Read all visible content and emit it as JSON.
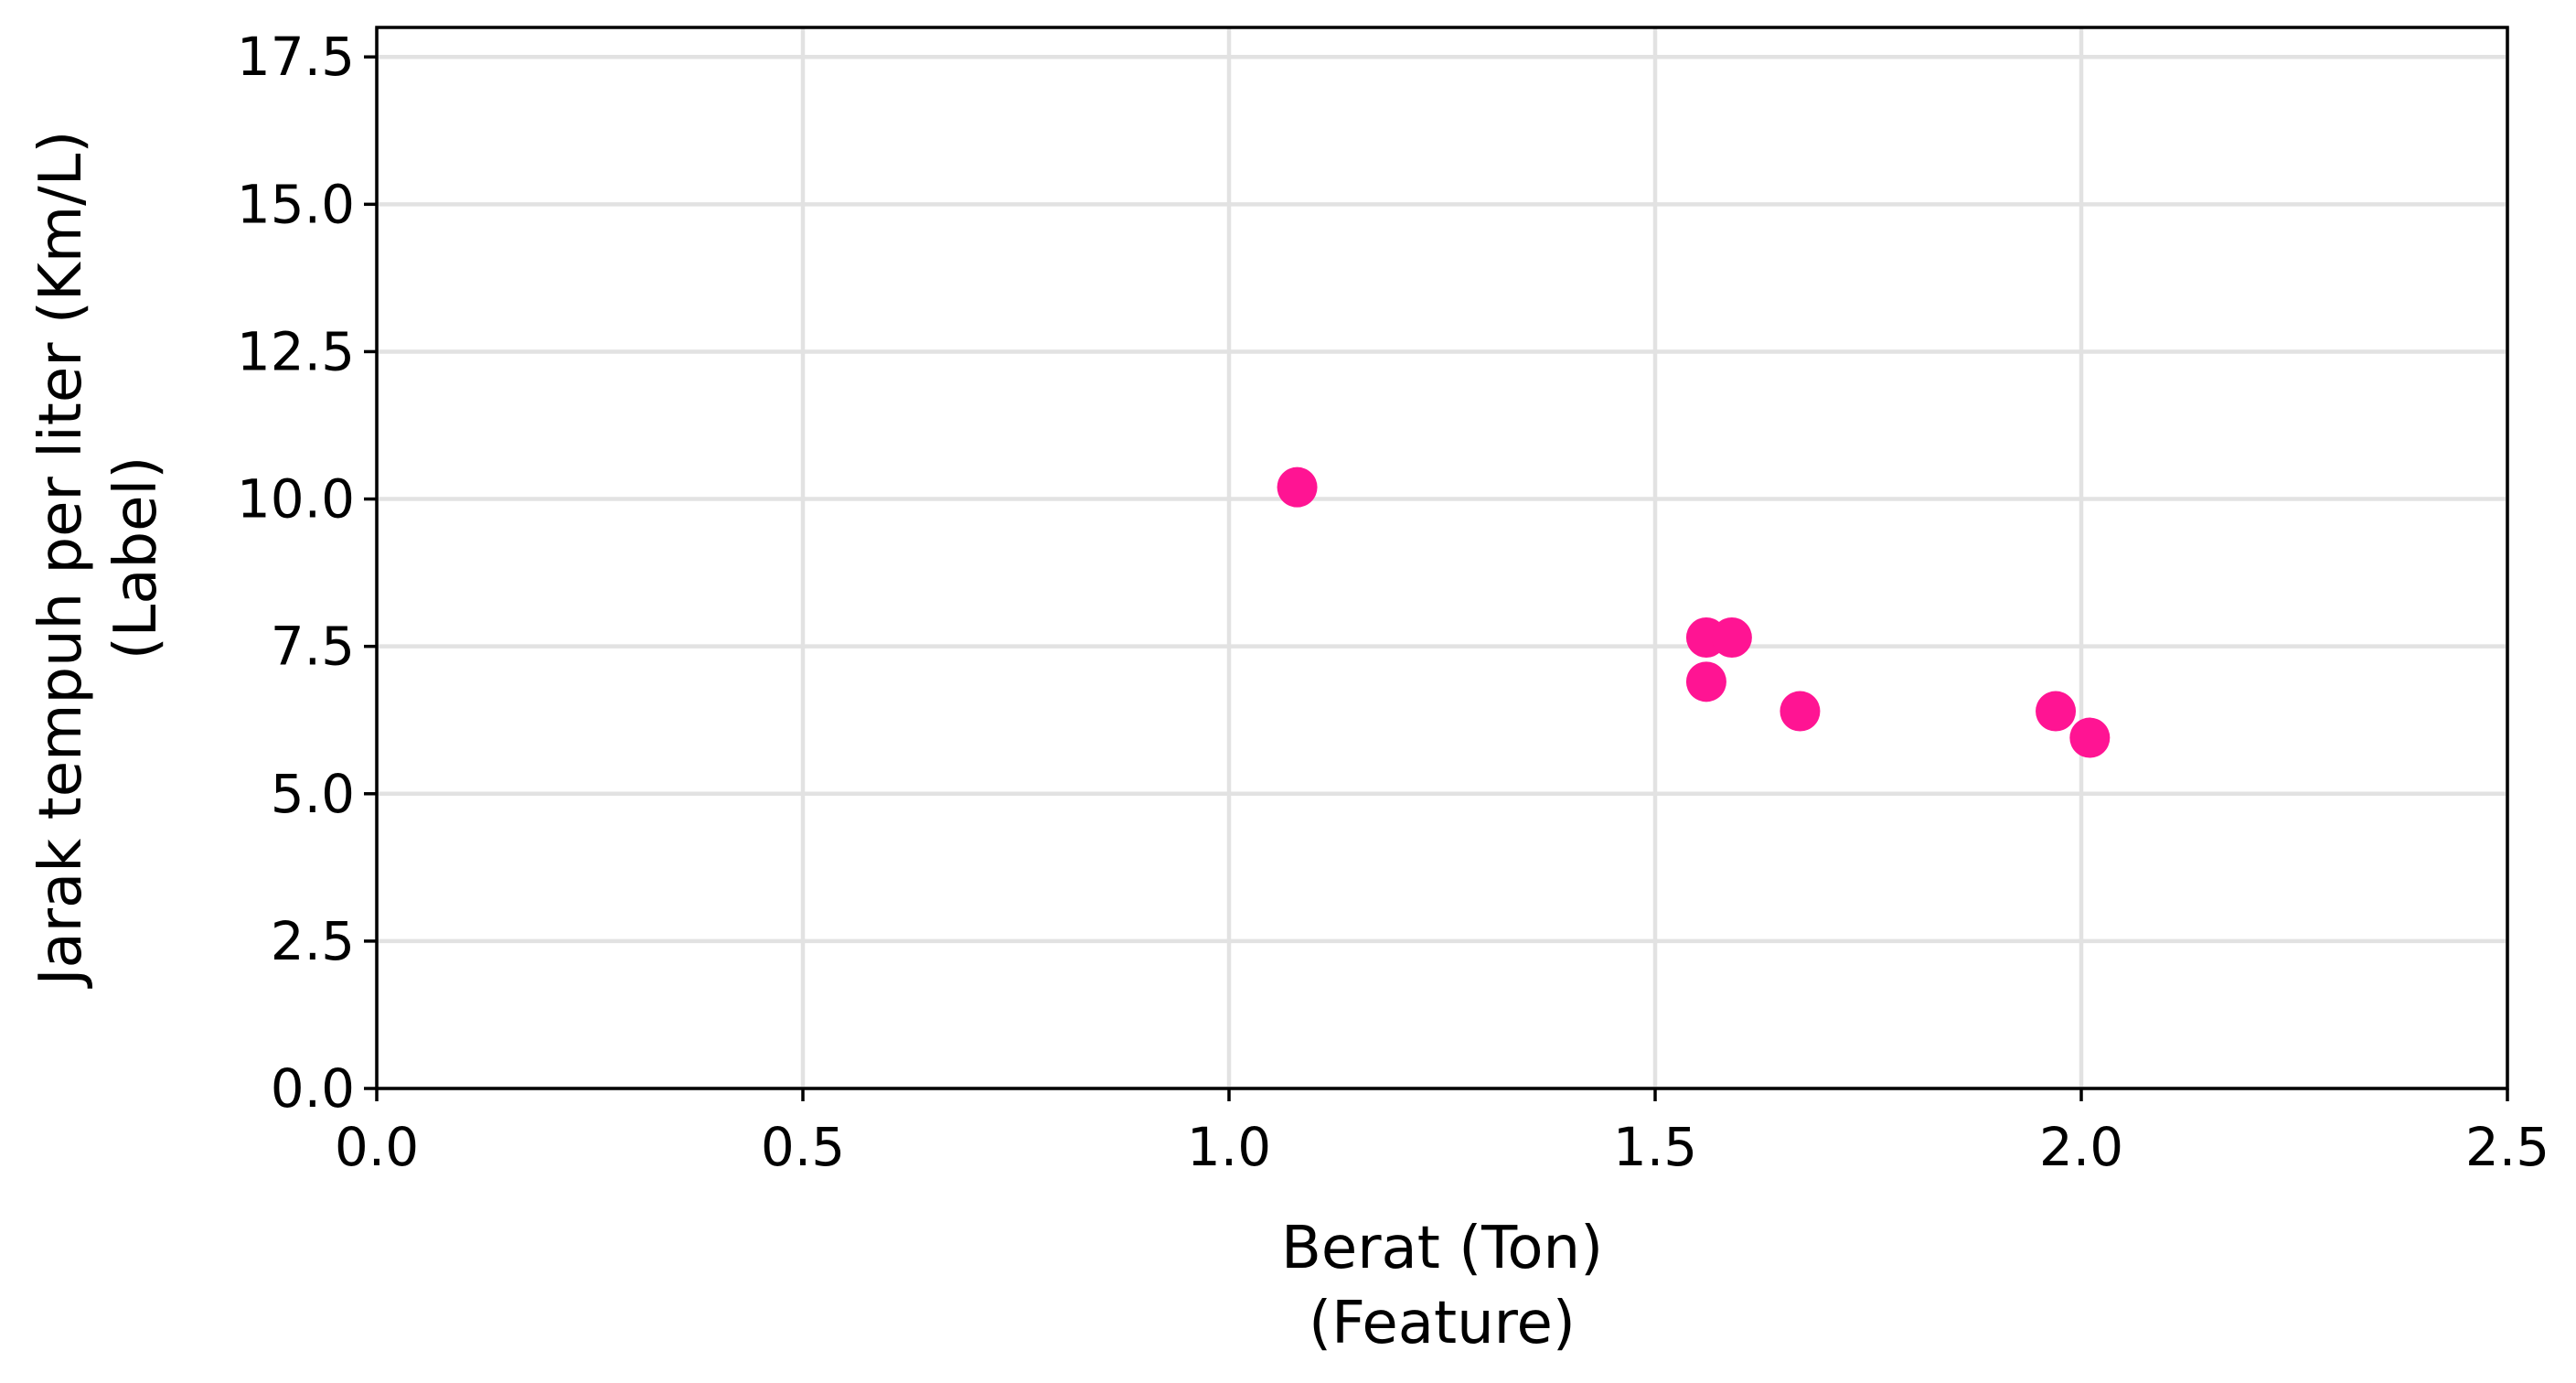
{
  "chart_data": {
    "type": "scatter",
    "title": "",
    "xlabel": [
      "Berat (Ton)",
      "(Feature)"
    ],
    "ylabel": [
      "Jarak tempuh per liter (Km/L)",
      "(Label)"
    ],
    "xlim": [
      0,
      2.5
    ],
    "ylim": [
      0,
      18
    ],
    "xticks": [
      "0.0",
      "0.5",
      "1.0",
      "1.5",
      "2.0",
      "2.5"
    ],
    "yticks": [
      "0.0",
      "2.5",
      "5.0",
      "7.5",
      "10.0",
      "12.5",
      "15.0",
      "17.5"
    ],
    "grid": true,
    "marker_color": "#ff1493",
    "points": [
      {
        "x": 1.08,
        "y": 10.2
      },
      {
        "x": 1.56,
        "y": 7.65
      },
      {
        "x": 1.59,
        "y": 7.65
      },
      {
        "x": 1.56,
        "y": 6.9
      },
      {
        "x": 1.67,
        "y": 6.4
      },
      {
        "x": 1.97,
        "y": 6.4
      },
      {
        "x": 2.01,
        "y": 5.95
      }
    ]
  }
}
